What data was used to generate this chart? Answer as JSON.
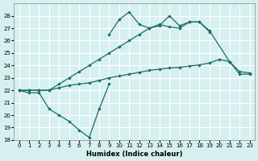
{
  "xlabel": "Humidex (Indice chaleur)",
  "xlim": [
    -0.5,
    23.5
  ],
  "ylim": [
    18,
    29
  ],
  "yticks": [
    18,
    19,
    20,
    21,
    22,
    23,
    24,
    25,
    26,
    27,
    28
  ],
  "xticks": [
    0,
    1,
    2,
    3,
    4,
    5,
    6,
    7,
    8,
    9,
    10,
    11,
    12,
    13,
    14,
    15,
    16,
    17,
    18,
    19,
    20,
    21,
    22,
    23
  ],
  "background_color": "#d6f0f0",
  "grid_color": "#ffffff",
  "line_color": "#1a6b6b",
  "line_low_x": [
    0,
    1,
    2,
    3,
    4,
    5,
    6,
    7,
    8,
    9
  ],
  "line_low_y": [
    22,
    21.8,
    21.8,
    20.5,
    20.0,
    19.5,
    18.8,
    18.2,
    20.5,
    22.5
  ],
  "line_flat_x": [
    0,
    1,
    2,
    3,
    4,
    5,
    6,
    7,
    8,
    9,
    10,
    11,
    12,
    13,
    14,
    15,
    16,
    17,
    18,
    19,
    20,
    21,
    22,
    23
  ],
  "line_flat_y": [
    22,
    22,
    22,
    22,
    22.2,
    22.4,
    22.5,
    22.6,
    22.8,
    23.0,
    23.15,
    23.3,
    23.45,
    23.6,
    23.7,
    23.8,
    23.85,
    23.95,
    24.05,
    24.2,
    24.5,
    24.3,
    23.3,
    23.3
  ],
  "line_mid_x": [
    0,
    1,
    2,
    3,
    4,
    5,
    6,
    7,
    8,
    9,
    10,
    11,
    12,
    13,
    14,
    15,
    16,
    17,
    18,
    19
  ],
  "line_mid_y": [
    22,
    22,
    22,
    22,
    22.5,
    23.0,
    23.5,
    24.0,
    24.5,
    25.0,
    25.5,
    26.0,
    26.5,
    27.0,
    27.3,
    27.1,
    27.0,
    27.5,
    27.5,
    26.7
  ],
  "line_top_x": [
    9,
    10,
    11,
    12,
    13,
    14,
    15,
    16,
    17,
    18,
    19,
    21,
    22,
    23
  ],
  "line_top_y": [
    26.5,
    27.7,
    28.3,
    27.3,
    27.0,
    27.2,
    28.0,
    27.2,
    27.5,
    27.5,
    26.8,
    24.3,
    23.5,
    23.4
  ]
}
